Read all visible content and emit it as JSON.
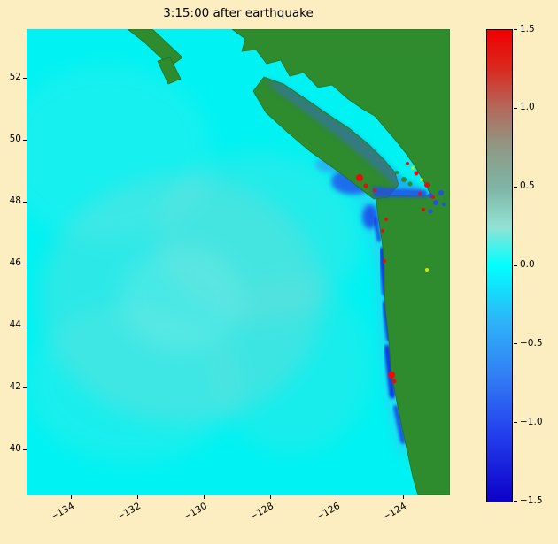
{
  "figure": {
    "background_color": "#fdeec2"
  },
  "chart_data": {
    "type": "heatmap",
    "title": "3:15:00 after earthquake",
    "description": "Tsunami sea-surface elevation over the Cascadia / Pacific-Northwest coast 3h15m after the earthquake. Open ocean is near 0 (cyan) with a faint ripple field; blue (negative, drawdown) bands hug the Washington/Oregon shelf and the Strait of Juan de Fuca entrance; isolated red (strong positive) peaks sit right at the coast; land is masked green.",
    "x_axis": {
      "label": "",
      "ticks": [
        -134,
        -132,
        -130,
        -128,
        -126,
        -124
      ],
      "tick_labels": [
        "−134",
        "−132",
        "−130",
        "−128",
        "−126",
        "−124"
      ],
      "range": [
        -135.33,
        -122.59
      ],
      "tick_rotation_deg": 30
    },
    "y_axis": {
      "label": "",
      "ticks": [
        52,
        50,
        48,
        46,
        44,
        42,
        40
      ],
      "tick_labels": [
        "52",
        "50",
        "48",
        "46",
        "44",
        "42",
        "40"
      ],
      "range": [
        38.51,
        53.57
      ]
    },
    "colorbar": {
      "range": [
        -1.5,
        1.5
      ],
      "ticks": [
        1.5,
        1.0,
        0.5,
        0.0,
        -0.5,
        -1.0,
        -1.5
      ],
      "tick_labels": [
        "1.5",
        "1.0",
        "0.5",
        "0.0",
        "−0.5",
        "−1.0",
        "−1.5"
      ],
      "stops": [
        {
          "value": 1.5,
          "color": "#f00000"
        },
        {
          "value": 1.25,
          "color": "#d92a20"
        },
        {
          "value": 1.0,
          "color": "#b26a5c"
        },
        {
          "value": 0.75,
          "color": "#8f9a86"
        },
        {
          "value": 0.5,
          "color": "#7fb4a4"
        },
        {
          "value": 0.25,
          "color": "#93e2d3"
        },
        {
          "value": 0.0,
          "color": "#00ffff"
        },
        {
          "value": -0.35,
          "color": "#2db4f8"
        },
        {
          "value": -0.7,
          "color": "#327ef4"
        },
        {
          "value": -1.05,
          "color": "#2442ee"
        },
        {
          "value": -1.5,
          "color": "#0d00c8"
        }
      ]
    },
    "land_color": "#2e8b2e",
    "ocean_color_at_zero": "#00f2f2",
    "features": [
      {
        "region": "open ocean",
        "lon_range": [
          -135.3,
          -126.0
        ],
        "value": "≈ 0, faint positive ripple rings centered near (-130.5, 44.5)"
      },
      {
        "region": "shelf band along Washington–Oregon coast",
        "lon": -124.4,
        "lat_range": [
          41.0,
          47.5
        ],
        "value": "−0.5 to −1.5 drawdown strips just offshore"
      },
      {
        "region": "Strait of Juan de Fuca entrance",
        "lon": -125.2,
        "lat": 48.4,
        "value": "mixed: blue patch ≈ −1.5 with red peaks ≈ +1.5"
      },
      {
        "region": "coastal peak near Cape Blanco area",
        "lon": -124.4,
        "lat": 42.4,
        "value": "≈ +1.5 (red spot)"
      },
      {
        "region": "Strait of Georgia / Puget Sound",
        "value": "speckled mix of positive (red/yellow) and negative (blue) values"
      },
      {
        "region": "land (Vancouver Island, BC mainland, WA/OR)",
        "value": "masked green"
      }
    ]
  }
}
